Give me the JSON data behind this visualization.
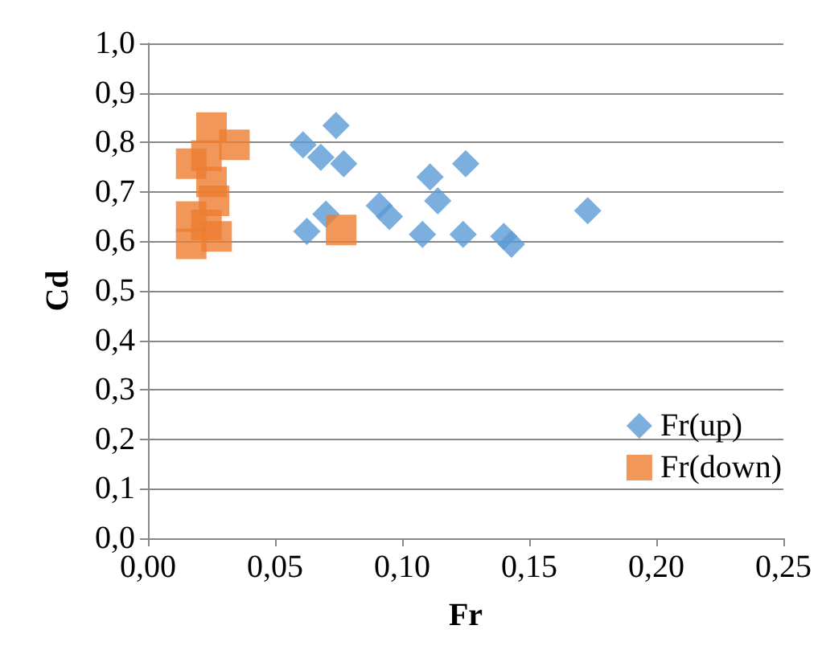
{
  "chart_data": {
    "type": "scatter",
    "xlabel": "Fr",
    "ylabel": "Cd",
    "xlim": [
      0,
      0.25
    ],
    "xticks": [
      {
        "value": 0,
        "label": "0,00"
      },
      {
        "value": 0.05,
        "label": "0,05"
      },
      {
        "value": 0.1,
        "label": "0,10"
      },
      {
        "value": 0.15,
        "label": "0,15"
      },
      {
        "value": 0.2,
        "label": "0,20"
      },
      {
        "value": 0.25,
        "label": "0,25"
      }
    ],
    "ylim": [
      0,
      1
    ],
    "yticks": [
      {
        "value": 0,
        "label": "0,0"
      },
      {
        "value": 0.1,
        "label": "0,1"
      },
      {
        "value": 0.2,
        "label": "0,2"
      },
      {
        "value": 0.3,
        "label": "0,3"
      },
      {
        "value": 0.4,
        "label": "0,4"
      },
      {
        "value": 0.5,
        "label": "0,5"
      },
      {
        "value": 0.6,
        "label": "0,6"
      },
      {
        "value": 0.7,
        "label": "0,7"
      },
      {
        "value": 0.8,
        "label": "0,8"
      },
      {
        "value": 0.9,
        "label": "0,9"
      },
      {
        "value": 1,
        "label": "1,0"
      }
    ],
    "grid": "y",
    "legend": "bottom right",
    "series": [
      {
        "name": "Fr(up)",
        "color": "#5b9bd5",
        "marker": "diamond",
        "x": [
          0.061,
          0.068,
          0.074,
          0.077,
          0.0625,
          0.07,
          0.091,
          0.095,
          0.111,
          0.114,
          0.108,
          0.125,
          0.124,
          0.14,
          0.143,
          0.173
        ],
        "values": [
          0.795,
          0.77,
          0.834,
          0.757,
          0.62,
          0.655,
          0.672,
          0.65,
          0.73,
          0.682,
          0.614,
          0.757,
          0.614,
          0.61,
          0.594,
          0.662
        ]
      },
      {
        "name": "Fr(down)",
        "color": "#ed7d31",
        "marker": "square",
        "x": [
          0.025,
          0.034,
          0.017,
          0.023,
          0.025,
          0.026,
          0.017,
          0.017,
          0.027,
          0.023,
          0.076
        ],
        "values": [
          0.83,
          0.795,
          0.757,
          0.773,
          0.72,
          0.682,
          0.65,
          0.595,
          0.61,
          0.633,
          0.623
        ]
      }
    ]
  }
}
